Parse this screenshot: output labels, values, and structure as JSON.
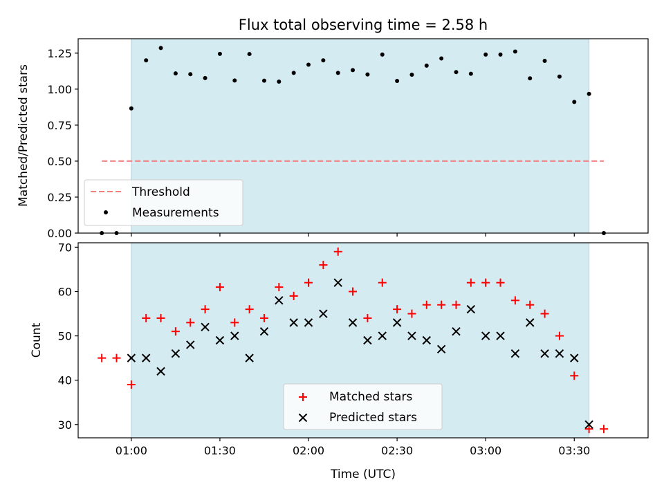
{
  "figure": {
    "title": "Flux total observing time = 2.58 h"
  },
  "chart_data": [
    {
      "type": "scatter",
      "title": "Flux total observing time = 2.58 h",
      "ylabel": "Matched/Predicted stars",
      "ylim": [
        0,
        1.35
      ],
      "yticks": [
        0.0,
        0.25,
        0.5,
        0.75,
        1.0,
        1.25
      ],
      "ytick_labels": [
        "0.00",
        "0.25",
        "0.50",
        "0.75",
        "1.00",
        "1.25"
      ],
      "xlim": [
        "00:42",
        "03:55"
      ],
      "shaded_span": [
        "01:00",
        "03:35"
      ],
      "shaded_color": "#d4ebf1",
      "legend_loc": "lower left",
      "threshold": {
        "name": "Threshold",
        "value": 0.5,
        "x_range": [
          "00:50",
          "03:40"
        ],
        "color": "#f07f7f"
      },
      "series": [
        {
          "name": "Measurements",
          "color": "#000000",
          "x": [
            "00:50",
            "00:55",
            "01:00",
            "01:05",
            "01:10",
            "01:15",
            "01:20",
            "01:25",
            "01:30",
            "01:35",
            "01:40",
            "01:45",
            "01:50",
            "01:55",
            "02:00",
            "02:05",
            "02:10",
            "02:15",
            "02:20",
            "02:25",
            "02:30",
            "02:35",
            "02:40",
            "02:45",
            "02:50",
            "02:55",
            "03:00",
            "03:05",
            "03:10",
            "03:15",
            "03:20",
            "03:25",
            "03:30",
            "03:35",
            "03:40"
          ],
          "y": [
            0.0,
            0.0,
            0.866,
            1.2,
            1.286,
            1.109,
            1.104,
            1.077,
            1.245,
            1.06,
            1.244,
            1.059,
            1.052,
            1.113,
            1.17,
            1.2,
            1.113,
            1.132,
            1.102,
            1.24,
            1.057,
            1.1,
            1.163,
            1.213,
            1.118,
            1.107,
            1.24,
            1.24,
            1.261,
            1.075,
            1.196,
            1.087,
            0.911,
            0.967,
            0.0
          ]
        }
      ]
    },
    {
      "type": "scatter",
      "xlabel": "Time (UTC)",
      "ylabel": "Count",
      "ylim": [
        27,
        71
      ],
      "yticks": [
        30,
        40,
        50,
        60,
        70
      ],
      "ytick_labels": [
        "30",
        "40",
        "50",
        "60",
        "70"
      ],
      "xticks": [
        "01:00",
        "01:30",
        "02:00",
        "02:30",
        "03:00",
        "03:30"
      ],
      "xtick_labels": [
        "01:00",
        "01:30",
        "02:00",
        "02:30",
        "03:00",
        "03:30"
      ],
      "xlim": [
        "00:42",
        "03:55"
      ],
      "shaded_span": [
        "01:00",
        "03:35"
      ],
      "shaded_color": "#d4ebf1",
      "legend_loc": "lower center",
      "series": [
        {
          "name": "Matched stars",
          "marker": "plus",
          "color": "#ff0000",
          "x": [
            "00:50",
            "00:55",
            "01:00",
            "01:05",
            "01:10",
            "01:15",
            "01:20",
            "01:25",
            "01:30",
            "01:35",
            "01:40",
            "01:45",
            "01:50",
            "01:55",
            "02:00",
            "02:05",
            "02:10",
            "02:15",
            "02:20",
            "02:25",
            "02:30",
            "02:35",
            "02:40",
            "02:45",
            "02:50",
            "02:55",
            "03:00",
            "03:05",
            "03:10",
            "03:15",
            "03:20",
            "03:25",
            "03:30",
            "03:35",
            "03:40"
          ],
          "y": [
            45,
            45,
            39,
            54,
            54,
            51,
            53,
            56,
            61,
            53,
            56,
            54,
            61,
            59,
            62,
            66,
            69,
            60,
            54,
            62,
            56,
            55,
            57,
            57,
            57,
            62,
            62,
            62,
            58,
            57,
            55,
            50,
            41,
            29,
            29
          ]
        },
        {
          "name": "Predicted stars",
          "marker": "x",
          "color": "#000000",
          "x": [
            "01:00",
            "01:05",
            "01:10",
            "01:15",
            "01:20",
            "01:25",
            "01:30",
            "01:35",
            "01:40",
            "01:45",
            "01:50",
            "01:55",
            "02:00",
            "02:05",
            "02:10",
            "02:15",
            "02:20",
            "02:25",
            "02:30",
            "02:35",
            "02:40",
            "02:45",
            "02:50",
            "02:55",
            "03:00",
            "03:05",
            "03:10",
            "03:15",
            "03:20",
            "03:25",
            "03:30",
            "03:35"
          ],
          "y": [
            45,
            45,
            42,
            46,
            48,
            52,
            49,
            50,
            45,
            51,
            58,
            53,
            53,
            55,
            62,
            53,
            49,
            50,
            53,
            50,
            49,
            47,
            51,
            56,
            50,
            50,
            46,
            53,
            46,
            46,
            45,
            30
          ]
        }
      ]
    }
  ]
}
